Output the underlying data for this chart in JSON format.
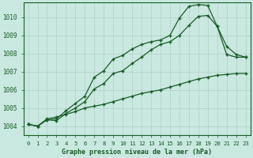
{
  "title": "Graphe pression niveau de la mer (hPa)",
  "background_color": "#c8e8e0",
  "grid_color": "#b0d0c8",
  "line_color": "#1a5c28",
  "marker": "+",
  "x_ticks": [
    0,
    1,
    2,
    3,
    4,
    5,
    6,
    7,
    8,
    9,
    10,
    11,
    12,
    13,
    14,
    15,
    16,
    17,
    18,
    19,
    20,
    21,
    22,
    23
  ],
  "ylim": [
    1003.5,
    1010.8
  ],
  "yticks": [
    1004,
    1005,
    1006,
    1007,
    1008,
    1009,
    1010
  ],
  "series": [
    [
      1004.1,
      1004.0,
      1004.4,
      1004.5,
      1004.65,
      1004.8,
      1005.0,
      1005.1,
      1005.2,
      1005.35,
      1005.5,
      1005.65,
      1005.8,
      1005.9,
      1006.0,
      1006.15,
      1006.3,
      1006.45,
      1006.6,
      1006.7,
      1006.8,
      1006.85,
      1006.9,
      1006.9
    ],
    [
      1004.1,
      1004.0,
      1004.35,
      1004.3,
      1004.7,
      1005.0,
      1005.35,
      1006.05,
      1006.35,
      1006.9,
      1007.05,
      1007.45,
      1007.8,
      1008.2,
      1008.5,
      1008.65,
      1009.0,
      1009.55,
      1010.05,
      1010.1,
      1009.5,
      1007.95,
      1007.8,
      1007.8
    ],
    [
      1004.1,
      1004.0,
      1004.35,
      1004.4,
      1004.85,
      1005.25,
      1005.65,
      1006.7,
      1007.05,
      1007.7,
      1007.9,
      1008.25,
      1008.5,
      1008.65,
      1008.75,
      1009.0,
      1009.95,
      1010.6,
      1010.7,
      1010.65,
      1009.5,
      1008.4,
      1007.95,
      1007.8
    ]
  ]
}
